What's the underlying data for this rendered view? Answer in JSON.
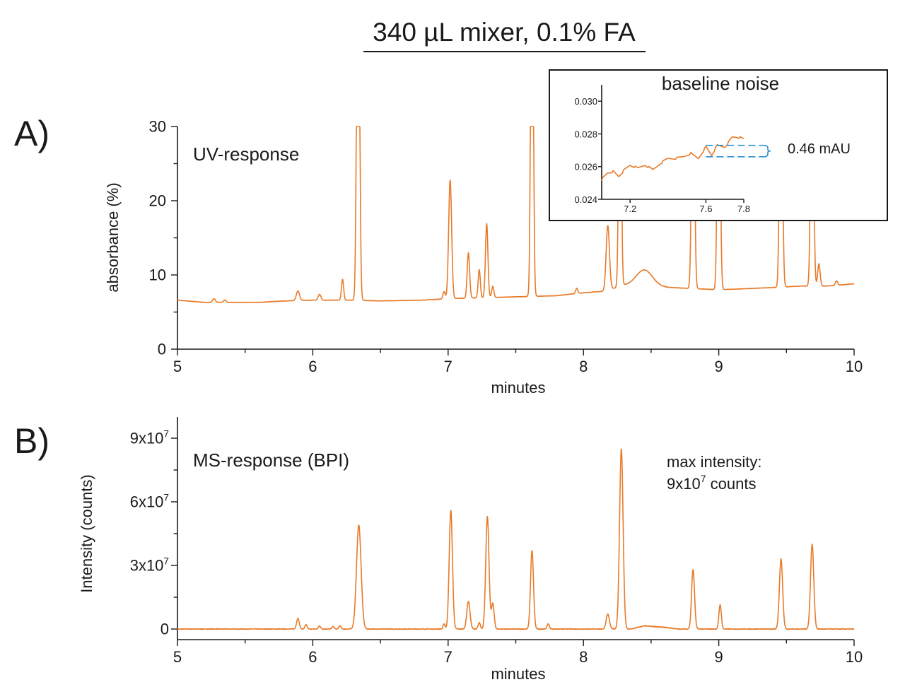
{
  "title": "340 µL mixer, 0.1% FA",
  "colors": {
    "trace": "#e87b2a",
    "noise_marker": "#2a8fd0",
    "axis": "#1a1a1a"
  },
  "panels": {
    "a": {
      "letter": "A)",
      "label": "UV-response",
      "xlabel": "minutes",
      "ylabel": "absorbance (%)"
    },
    "b": {
      "letter": "B)",
      "label": "MS-response (BPI)",
      "xlabel": "minutes",
      "ylabel": "Intensity (counts)",
      "note_line1": "max intensity:",
      "note_line2_base": "9x10",
      "note_line2_exp": "7",
      "note_line2_unit": " counts"
    }
  },
  "inset": {
    "title": "baseline noise",
    "annotation": "0.46 mAU"
  },
  "chart_data": [
    {
      "id": "uv",
      "type": "line",
      "title": "UV-response",
      "xlabel": "minutes",
      "ylabel": "absorbance (%)",
      "xlim": [
        5,
        10
      ],
      "ylim": [
        0,
        30
      ],
      "xticks": [
        5,
        6,
        7,
        8,
        9,
        10
      ],
      "yticks": [
        0,
        10,
        20,
        30
      ],
      "grid": false,
      "baseline": [
        [
          5.0,
          6.6
        ],
        [
          5.2,
          6.3
        ],
        [
          5.6,
          6.3
        ],
        [
          5.8,
          6.5
        ],
        [
          6.0,
          6.6
        ],
        [
          6.3,
          6.6
        ],
        [
          6.5,
          6.5
        ],
        [
          6.8,
          6.6
        ],
        [
          7.0,
          6.8
        ],
        [
          7.4,
          7.0
        ],
        [
          7.8,
          7.2
        ],
        [
          8.0,
          7.6
        ],
        [
          8.15,
          7.8
        ],
        [
          8.3,
          8.6
        ],
        [
          9.0,
          8.0
        ],
        [
          9.4,
          8.3
        ],
        [
          9.6,
          8.5
        ],
        [
          9.8,
          8.5
        ],
        [
          10.0,
          8.8
        ]
      ],
      "peaks": [
        {
          "x": 5.27,
          "height": 0.5,
          "width": 0.01
        },
        {
          "x": 5.35,
          "height": 0.3,
          "width": 0.01
        },
        {
          "x": 5.89,
          "height": 1.3,
          "width": 0.012
        },
        {
          "x": 6.05,
          "height": 0.8,
          "width": 0.01
        },
        {
          "x": 6.22,
          "height": 2.8,
          "width": 0.008
        },
        {
          "x": 6.335,
          "height": 60,
          "width": 0.01
        },
        {
          "x": 6.97,
          "height": 1.0,
          "width": 0.008
        },
        {
          "x": 7.015,
          "height": 16.0,
          "width": 0.011
        },
        {
          "x": 7.15,
          "height": 6.1,
          "width": 0.009
        },
        {
          "x": 7.23,
          "height": 3.8,
          "width": 0.008
        },
        {
          "x": 7.285,
          "height": 10.0,
          "width": 0.009
        },
        {
          "x": 7.33,
          "height": 1.5,
          "width": 0.008
        },
        {
          "x": 7.62,
          "height": 60,
          "width": 0.009
        },
        {
          "x": 7.95,
          "height": 0.7,
          "width": 0.008
        },
        {
          "x": 8.18,
          "height": 8.7,
          "width": 0.012
        },
        {
          "x": 8.27,
          "height": 40,
          "width": 0.009
        },
        {
          "x": 8.45,
          "height": 2.2,
          "width": 0.06
        },
        {
          "x": 8.81,
          "height": 40,
          "width": 0.01
        },
        {
          "x": 9.0,
          "height": 40,
          "width": 0.01
        },
        {
          "x": 9.46,
          "height": 40,
          "width": 0.01
        },
        {
          "x": 9.69,
          "height": 40,
          "width": 0.01
        },
        {
          "x": 9.74,
          "height": 3.0,
          "width": 0.009
        },
        {
          "x": 9.87,
          "height": 0.6,
          "width": 0.008
        }
      ]
    },
    {
      "id": "noise",
      "type": "line",
      "title": "baseline noise",
      "xlim": [
        7.05,
        7.8
      ],
      "ylim": [
        0.024,
        0.031
      ],
      "xticks": [
        7.2,
        7.6,
        7.8
      ],
      "yticks": [
        0.024,
        0.026,
        0.028,
        0.03
      ],
      "x": [
        7.05,
        7.08,
        7.11,
        7.14,
        7.17,
        7.2,
        7.24,
        7.28,
        7.32,
        7.36,
        7.4,
        7.44,
        7.48,
        7.52,
        7.56,
        7.6,
        7.63,
        7.66,
        7.7,
        7.74,
        7.77,
        7.8
      ],
      "y": [
        0.0252,
        0.0256,
        0.0257,
        0.0254,
        0.0258,
        0.0261,
        0.0259,
        0.0261,
        0.0258,
        0.0262,
        0.0265,
        0.0265,
        0.0266,
        0.0268,
        0.0265,
        0.0272,
        0.0267,
        0.0273,
        0.0272,
        0.0278,
        0.0278,
        0.0277
      ],
      "noise_band": {
        "x_start": 7.6,
        "upper": 0.0273,
        "lower": 0.0266
      },
      "annotation": "0.46 mAU"
    },
    {
      "id": "ms",
      "type": "line",
      "title": "MS-response (BPI)",
      "xlabel": "minutes",
      "ylabel": "Intensity (counts)",
      "xlim": [
        5,
        10
      ],
      "ylim": [
        -5000000,
        100000000
      ],
      "xticks": [
        5,
        6,
        7,
        8,
        9,
        10
      ],
      "yticks": [
        0,
        30000000,
        60000000,
        90000000
      ],
      "ytick_labels": [
        {
          "base": "0",
          "exp": ""
        },
        {
          "base": "3x10",
          "exp": "7"
        },
        {
          "base": "6x10",
          "exp": "7"
        },
        {
          "base": "9x10",
          "exp": "7"
        }
      ],
      "grid": false,
      "baseline": [
        [
          5,
          0
        ],
        [
          8.35,
          0
        ],
        [
          8.45,
          1500000
        ],
        [
          8.6,
          800000
        ],
        [
          8.7,
          0
        ],
        [
          10,
          0
        ]
      ],
      "peaks": [
        {
          "x": 5.89,
          "height": 5000000,
          "width": 0.01
        },
        {
          "x": 5.95,
          "height": 2000000,
          "width": 0.008
        },
        {
          "x": 6.05,
          "height": 1500000,
          "width": 0.008
        },
        {
          "x": 6.15,
          "height": 1200000,
          "width": 0.008
        },
        {
          "x": 6.2,
          "height": 1500000,
          "width": 0.008
        },
        {
          "x": 6.34,
          "height": 49000000,
          "width": 0.017
        },
        {
          "x": 6.97,
          "height": 2500000,
          "width": 0.007
        },
        {
          "x": 7.02,
          "height": 56000000,
          "width": 0.012
        },
        {
          "x": 7.15,
          "height": 13000000,
          "width": 0.012
        },
        {
          "x": 7.23,
          "height": 3000000,
          "width": 0.008
        },
        {
          "x": 7.29,
          "height": 53000000,
          "width": 0.012
        },
        {
          "x": 7.33,
          "height": 12000000,
          "width": 0.01
        },
        {
          "x": 7.62,
          "height": 37000000,
          "width": 0.011
        },
        {
          "x": 7.74,
          "height": 2500000,
          "width": 0.008
        },
        {
          "x": 8.18,
          "height": 7000000,
          "width": 0.012
        },
        {
          "x": 8.28,
          "height": 85000000,
          "width": 0.013
        },
        {
          "x": 8.81,
          "height": 28000000,
          "width": 0.011
        },
        {
          "x": 9.01,
          "height": 11500000,
          "width": 0.009
        },
        {
          "x": 9.46,
          "height": 33000000,
          "width": 0.012
        },
        {
          "x": 9.69,
          "height": 40000000,
          "width": 0.012
        }
      ]
    }
  ]
}
